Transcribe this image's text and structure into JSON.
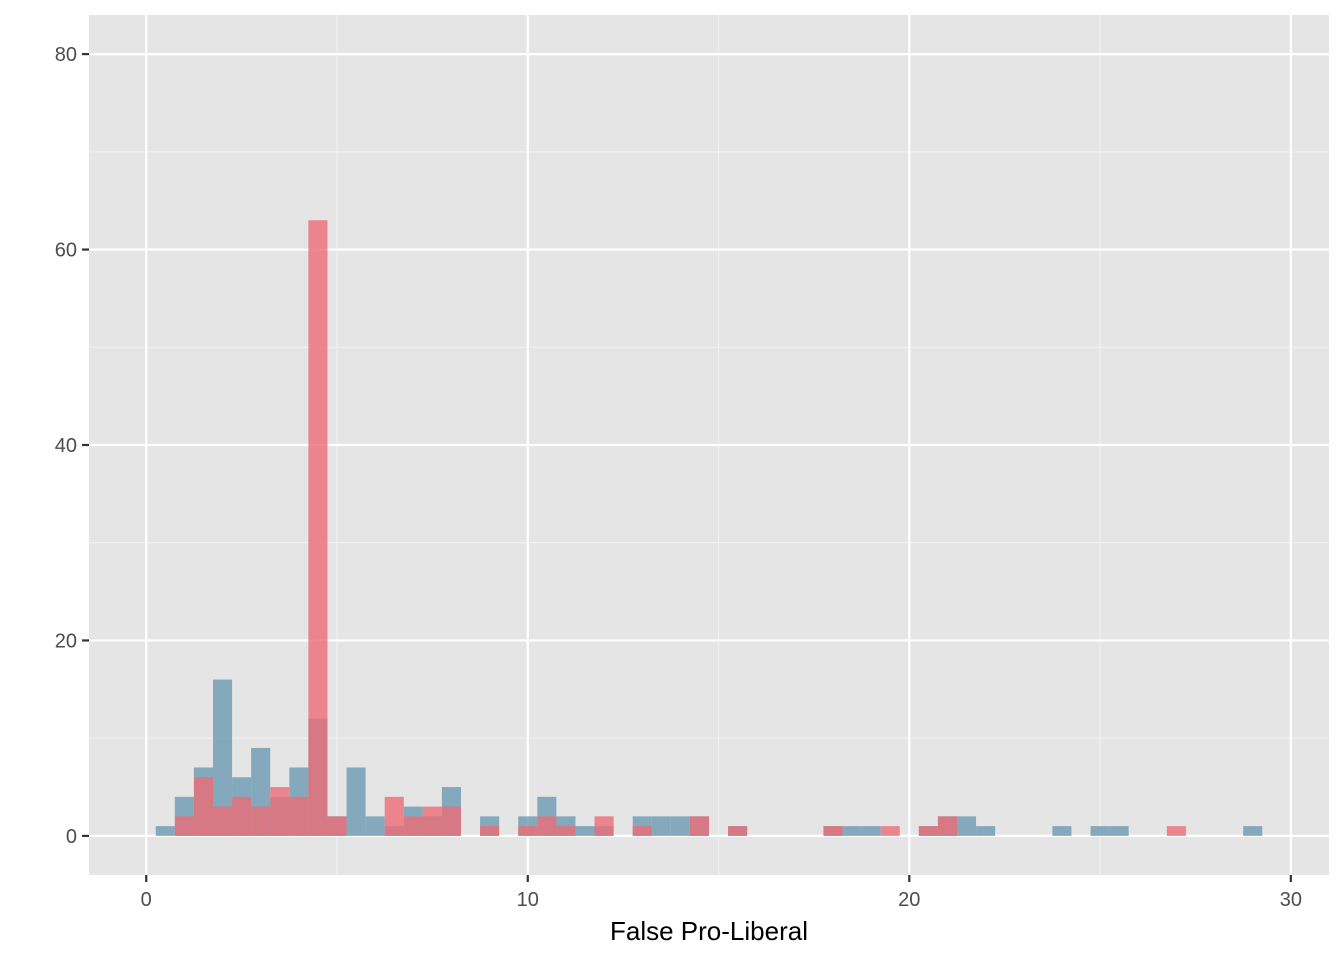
{
  "chart_data": {
    "type": "bar",
    "xlabel": "False Pro-Liberal",
    "ylabel": "",
    "xlim": [
      -1.5,
      31
    ],
    "ylim": [
      -4,
      84
    ],
    "x_ticks": [
      0,
      10,
      20,
      30
    ],
    "x_tick_labels": [
      "0",
      "10",
      "20",
      "30"
    ],
    "y_ticks": [
      0,
      20,
      40,
      60,
      80
    ],
    "y_tick_labels": [
      "0",
      "20",
      "40",
      "60",
      "80"
    ],
    "grid": true,
    "legend": "none",
    "bin_width": 0.5,
    "x": [
      0.5,
      1.0,
      1.5,
      2.0,
      2.5,
      3.0,
      3.5,
      4.0,
      4.5,
      5.0,
      5.5,
      6.0,
      6.5,
      7.0,
      7.5,
      8.0,
      9.0,
      10.0,
      10.5,
      11.0,
      11.5,
      12.0,
      13.0,
      13.5,
      14.0,
      14.5,
      15.5,
      18.0,
      18.5,
      19.0,
      19.5,
      20.5,
      21.0,
      21.5,
      22.0,
      24.0,
      25.0,
      25.5,
      27.0,
      29.0
    ],
    "series": [
      {
        "color": "#6b9ab3",
        "values": [
          1,
          4,
          7,
          16,
          6,
          9,
          4,
          7,
          12,
          2,
          7,
          2,
          1,
          3,
          2,
          5,
          2,
          2,
          4,
          2,
          1,
          1,
          2,
          2,
          2,
          2,
          1,
          1,
          1,
          1,
          0,
          1,
          2,
          2,
          1,
          1,
          1,
          1,
          0,
          1
        ]
      },
      {
        "color": "#ec6b77",
        "values": [
          0,
          2,
          6,
          3,
          4,
          3,
          5,
          4,
          63,
          2,
          0,
          0,
          4,
          2,
          3,
          3,
          1,
          1,
          2,
          1,
          0,
          2,
          1,
          0,
          0,
          2,
          1,
          1,
          0,
          0,
          1,
          1,
          2,
          0,
          0,
          0,
          0,
          0,
          1,
          0
        ]
      }
    ]
  }
}
